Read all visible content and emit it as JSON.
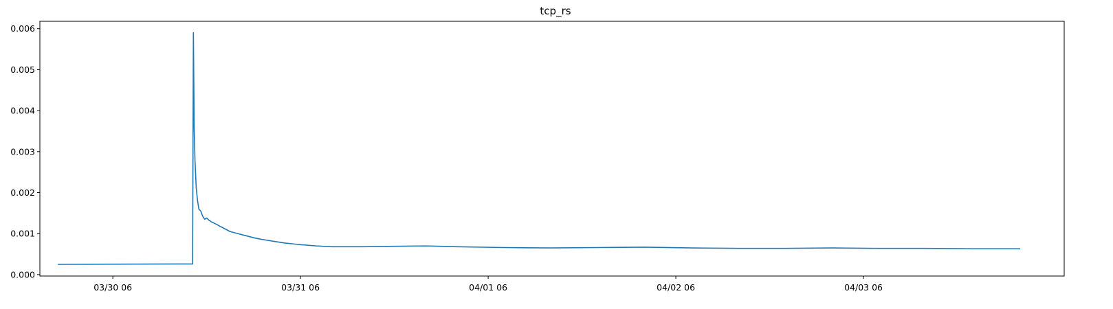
{
  "chart_data": {
    "type": "line",
    "title": "tcp_rs",
    "xlabel": "",
    "ylabel": "",
    "x_tick_labels": [
      "03/30 06",
      "03/31 06",
      "04/01 06",
      "04/02 06",
      "04/03 06"
    ],
    "y_tick_labels": [
      "0.000",
      "0.001",
      "0.002",
      "0.003",
      "0.004",
      "0.005",
      "0.006"
    ],
    "y_ticks": [
      0,
      0.001,
      0.002,
      0.003,
      0.004,
      0.005,
      0.006
    ],
    "ylim": [
      -3.5e-05,
      0.00618
    ],
    "xlim": [
      "03/29 20:40",
      "04/04 07:40"
    ],
    "grid": false,
    "series": [
      {
        "color": "#1f77b4",
        "x": [
          "03/29 23:00",
          "03/30 16:00",
          "03/30 16:12",
          "03/30 16:18",
          "03/30 16:24",
          "03/30 16:30",
          "03/30 16:40",
          "03/30 16:50",
          "03/30 17:00",
          "03/30 17:15",
          "03/30 17:30",
          "03/30 17:45",
          "03/30 18:00",
          "03/30 18:20",
          "03/30 18:40",
          "03/30 19:00",
          "03/30 19:20",
          "03/30 19:40",
          "03/30 20:00",
          "03/30 20:30",
          "03/30 21:00",
          "03/30 22:00",
          "03/30 23:00",
          "03/31 00:00",
          "03/31 01:00",
          "03/31 02:00",
          "03/31 03:00",
          "03/31 04:00",
          "03/31 05:00",
          "03/31 06:00",
          "03/31 08:00",
          "03/31 10:00",
          "03/31 12:00",
          "03/31 14:00",
          "03/31 18:00",
          "03/31 22:00",
          "04/01 02:00",
          "04/01 08:00",
          "04/01 14:00",
          "04/01 20:00",
          "04/02 02:00",
          "04/02 08:00",
          "04/02 14:00",
          "04/02 20:00",
          "04/03 02:00",
          "04/03 08:00",
          "04/03 14:00",
          "04/03 20:00",
          "04/04 02:00"
        ],
        "y": [
          0.00025,
          0.00026,
          0.00026,
          0.0059,
          0.0036,
          0.0028,
          0.0021,
          0.0018,
          0.0016,
          0.00155,
          0.00142,
          0.00135,
          0.00138,
          0.00132,
          0.00128,
          0.00125,
          0.00122,
          0.00118,
          0.00115,
          0.0011,
          0.00105,
          0.001,
          0.00095,
          0.0009,
          0.00086,
          0.00083,
          0.0008,
          0.00077,
          0.00075,
          0.00073,
          0.0007,
          0.00068,
          0.00068,
          0.00068,
          0.00069,
          0.0007,
          0.00068,
          0.00066,
          0.00065,
          0.00066,
          0.00067,
          0.00065,
          0.00064,
          0.00064,
          0.00065,
          0.00064,
          0.00064,
          0.00063,
          0.00063
        ]
      }
    ]
  }
}
